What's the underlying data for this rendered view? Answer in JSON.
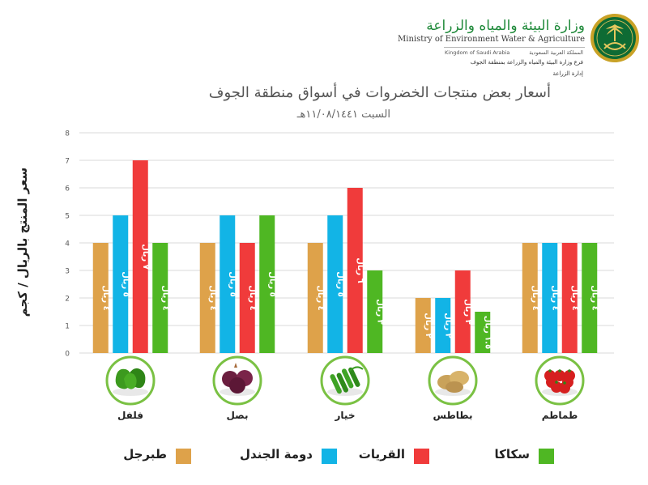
{
  "header": {
    "ministry_ar": "وزارة البيئة والمياه والزراعة",
    "ministry_en": "Ministry of Environment Water & Agriculture",
    "kingdom_en": "Kingdom of Saudi Arabia",
    "kingdom_ar": "المملكة العربية السعودية",
    "branch_ar": "فرع وزارة البيئة والمياه والزراعة بمنطقة الجوف",
    "dept_ar": "إدارة الزراعة",
    "logo_icon": "palm-swords-emblem-icon"
  },
  "chart_data": {
    "type": "bar",
    "title": "أسعار بعض منتجات الخضروات في أسواق منطقة الجوف",
    "subtitle": "السبت ١١/٠٨/١٤٤١هـ",
    "ylabel": "سعر المنتج بالريال / كجم",
    "ylim": [
      0,
      8
    ],
    "yticks": [
      0,
      1,
      2,
      3,
      4,
      5,
      6,
      7,
      8
    ],
    "grid": true,
    "legend_position": "bottom",
    "categories": [
      "فلفل",
      "بصل",
      "خيار",
      "بطاطس",
      "طماطم"
    ],
    "category_icons": [
      "green-pepper-icon",
      "red-onion-icon",
      "cucumber-icon",
      "potato-icon",
      "tomato-icon"
    ],
    "series": [
      {
        "name": "طبرجل",
        "color": "#dea24a",
        "values": [
          4,
          4,
          4,
          2,
          4
        ],
        "labels": [
          "٤ ريال",
          "٤ ريال",
          "٤ ريال",
          "٢ ريال",
          "٤ ريال"
        ]
      },
      {
        "name": "دومة الجندل",
        "color": "#12b4e6",
        "values": [
          5,
          5,
          5,
          2,
          4
        ],
        "labels": [
          "٥ ريال",
          "٥ ريال",
          "٥ ريال",
          "٢ ريال",
          "٤ ريال"
        ]
      },
      {
        "name": "القريات",
        "color": "#f03b3b",
        "values": [
          7,
          4,
          6,
          3,
          4
        ],
        "labels": [
          "٧ ريال",
          "٤ ريال",
          "٦ ريال",
          "٣ ريال",
          "٤ ريال"
        ]
      },
      {
        "name": "سكاكا",
        "color": "#4fb723",
        "values": [
          4,
          5,
          3,
          1.5,
          4
        ],
        "labels": [
          "٤ ريال",
          "٥ ريال",
          "٣ ريال",
          "١.٥ ريال",
          "٤ ريال"
        ]
      }
    ]
  }
}
